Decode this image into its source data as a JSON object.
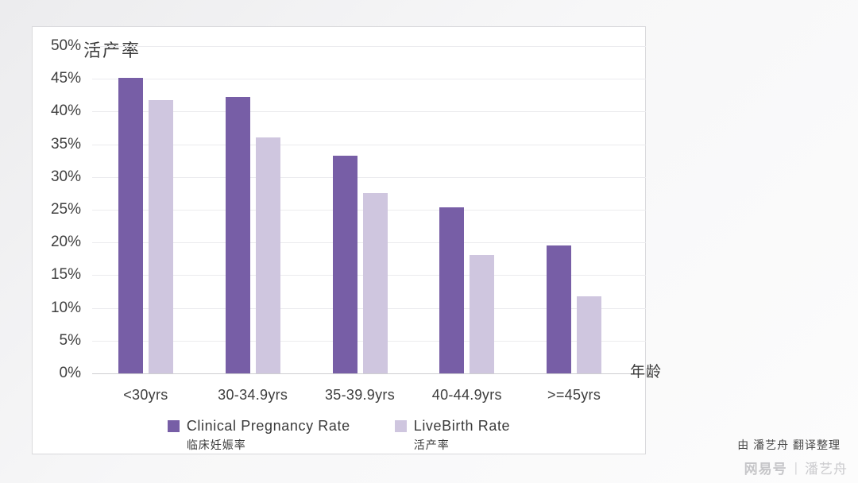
{
  "chart_data": {
    "type": "bar",
    "categories": [
      "<30yrs",
      "30-34.9yrs",
      "35-39.9yrs",
      "40-44.9yrs",
      ">=45yrs"
    ],
    "series": [
      {
        "name": "Clinical Pregnancy Rate",
        "label_zh": "临床妊娠率",
        "color": "#775ea6",
        "values": [
          45.1,
          42.2,
          33.3,
          25.4,
          19.6
        ]
      },
      {
        "name": "LiveBirth Rate",
        "label_zh": "活产率",
        "color": "#cfc6df",
        "values": [
          41.8,
          36.1,
          27.5,
          18.1,
          11.8
        ]
      }
    ],
    "title": "活产率",
    "xlabel": "年龄",
    "ylabel": "活产率",
    "ylim": [
      0,
      50
    ],
    "ytick_step": 5,
    "ytick_suffix": "%",
    "grid": true,
    "legend_position": "bottom"
  },
  "footer": {
    "credit": "由 潘艺舟 翻译整理",
    "watermark_brand": "网易号",
    "watermark_divider": "|",
    "watermark_author": "潘艺舟"
  },
  "colors": {
    "series_dark": "#775ea6",
    "series_light": "#cfc6df",
    "gridline": "#ebebee",
    "panel_border": "#d9d9dc"
  }
}
